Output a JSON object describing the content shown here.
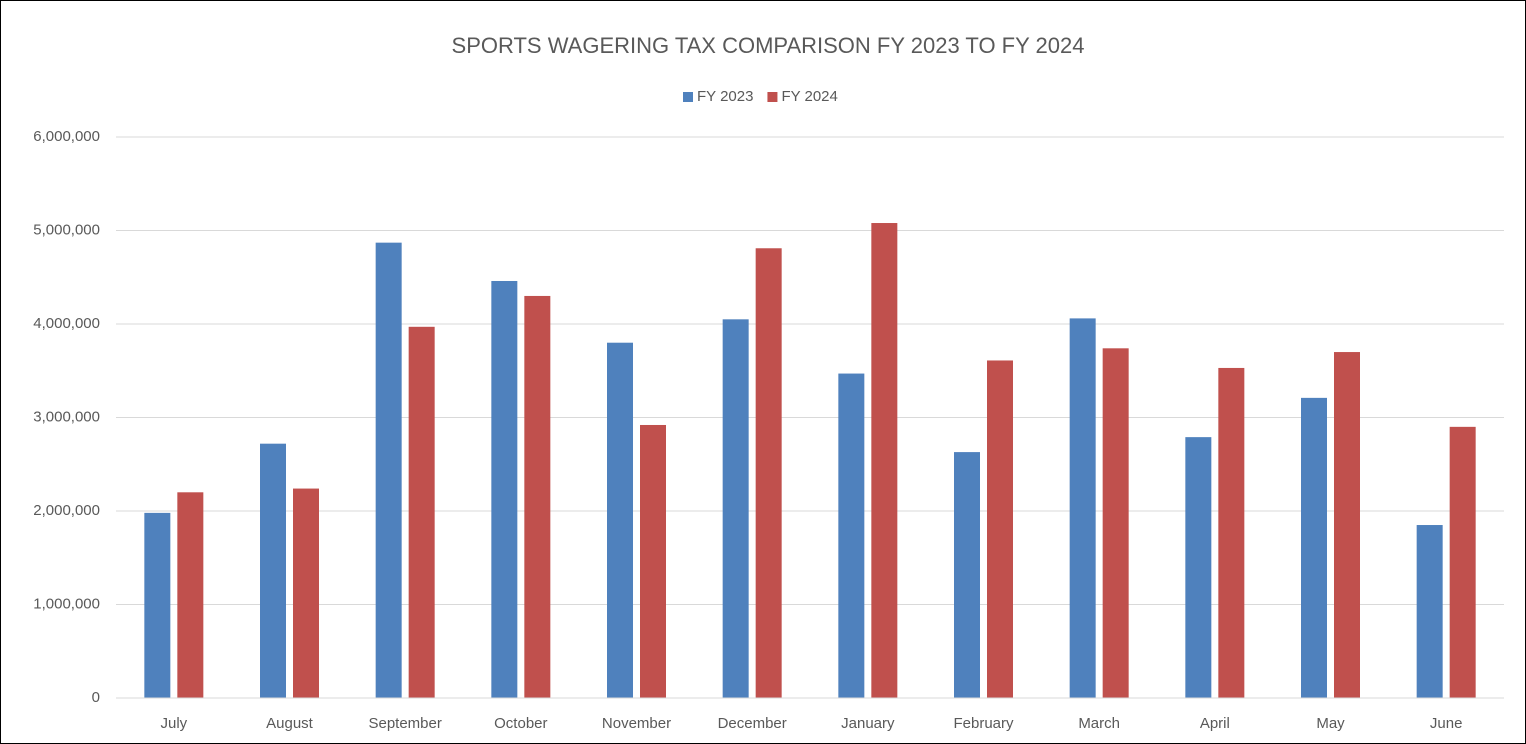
{
  "chart_data": {
    "type": "bar",
    "title": "SPORTS WAGERING TAX COMPARISON FY 2023 TO FY 2024",
    "categories": [
      "July",
      "August",
      "September",
      "October",
      "November",
      "December",
      "January",
      "February",
      "March",
      "April",
      "May",
      "June"
    ],
    "series": [
      {
        "name": "FY 2023",
        "color": "#4f81bd",
        "values": [
          1980000,
          2720000,
          4870000,
          4460000,
          3800000,
          4050000,
          3470000,
          2630000,
          4060000,
          2790000,
          3210000,
          1850000
        ]
      },
      {
        "name": "FY 2024",
        "color": "#c0504d",
        "values": [
          2200000,
          2240000,
          3970000,
          4300000,
          2920000,
          4810000,
          5080000,
          3610000,
          3740000,
          3530000,
          3700000,
          2900000
        ]
      }
    ],
    "ylim": [
      0,
      6000000
    ],
    "yticks": [
      0,
      {
        "value": 1000000,
        "label": "1,000,000"
      },
      {
        "value": 2000000,
        "label": "2,000,000"
      },
      {
        "value": 3000000,
        "label": "3,000,000"
      },
      {
        "value": 4000000,
        "label": "4,000,000"
      },
      {
        "value": 5000000,
        "label": "5,000,000"
      },
      {
        "value": 6000000,
        "label": "6,000,000"
      }
    ],
    "grid": true,
    "legend": "top"
  }
}
